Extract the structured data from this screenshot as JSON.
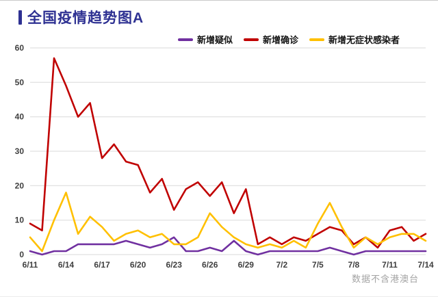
{
  "page": {
    "title": "全国疫情趋势图A",
    "watermark": "数据不含港澳台"
  },
  "chart_data": {
    "type": "line",
    "title": "全国疫情趋势图A",
    "grid": "horizontal",
    "legend_position": "top",
    "ylim": [
      0,
      60
    ],
    "y_ticks": [
      0,
      10,
      20,
      30,
      40,
      50,
      60
    ],
    "x_tick_labels": [
      "6/11",
      "6/14",
      "6/17",
      "6/20",
      "6/23",
      "6/26",
      "6/29",
      "7/2",
      "7/5",
      "7/8",
      "7/11",
      "7/14"
    ],
    "x": [
      "6/11",
      "6/12",
      "6/13",
      "6/14",
      "6/15",
      "6/16",
      "6/17",
      "6/18",
      "6/19",
      "6/20",
      "6/21",
      "6/22",
      "6/23",
      "6/24",
      "6/25",
      "6/26",
      "6/27",
      "6/28",
      "6/29",
      "6/30",
      "7/1",
      "7/2",
      "7/3",
      "7/4",
      "7/5",
      "7/6",
      "7/7",
      "7/8",
      "7/9",
      "7/10",
      "7/11",
      "7/12",
      "7/13",
      "7/14"
    ],
    "series": [
      {
        "key": "suspected",
        "name": "新增疑似",
        "color": "#7030a0",
        "values": [
          1,
          0,
          1,
          1,
          3,
          3,
          3,
          3,
          4,
          3,
          2,
          3,
          5,
          1,
          1,
          2,
          1,
          4,
          1,
          0,
          1,
          1,
          1,
          1,
          1,
          2,
          1,
          0,
          1,
          1,
          1,
          1,
          1,
          1
        ]
      },
      {
        "key": "confirmed",
        "name": "新增确诊",
        "color": "#c00000",
        "values": [
          9,
          7,
          57,
          49,
          40,
          44,
          28,
          32,
          27,
          26,
          18,
          22,
          13,
          19,
          21,
          17,
          21,
          12,
          19,
          3,
          5,
          3,
          5,
          4,
          6,
          8,
          7,
          3,
          5,
          2,
          7,
          8,
          4,
          6
        ]
      },
      {
        "key": "asymptomatic",
        "name": "新增无症状感染者",
        "color": "#ffc000",
        "values": [
          5,
          1,
          10,
          18,
          6,
          11,
          8,
          4,
          6,
          7,
          5,
          6,
          3,
          3,
          5,
          12,
          8,
          5,
          3,
          2,
          3,
          2,
          4,
          2,
          9,
          15,
          8,
          2,
          5,
          3,
          5,
          6,
          6,
          4
        ]
      }
    ]
  }
}
